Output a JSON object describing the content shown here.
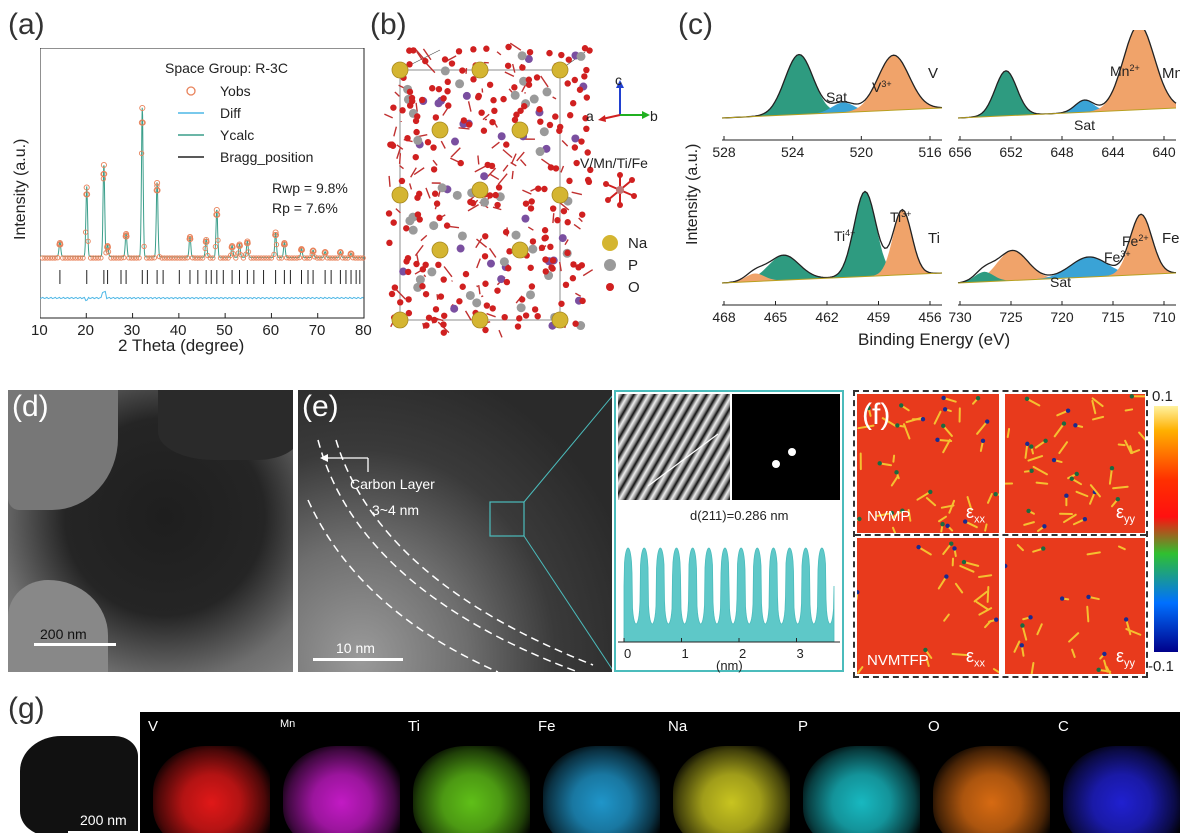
{
  "panels": {
    "a": "(a)",
    "b": "(b)",
    "c": "(c)",
    "d": "(d)",
    "e": "(e)",
    "f": "(f)",
    "g": "(g)"
  },
  "a": {
    "space_group": "Space Group: R-3C",
    "legend": [
      "Yobs",
      "Diff",
      "Ycalc",
      "Bragg_position"
    ],
    "rwp": "Rwp = 9.8%",
    "rp": "Rp = 7.6%",
    "ylabel": "Intensity (a.u.)",
    "xlabel": "2 Theta (degree)",
    "xticks": [
      "10",
      "20",
      "30",
      "40",
      "50",
      "60",
      "70",
      "80"
    ],
    "colors": {
      "yobs": "#e8825a",
      "diff": "#4db7e6",
      "ycalc": "#3a9e8a",
      "bragg": "#222222"
    }
  },
  "chart_data": {
    "type": "line",
    "x_range": [
      10,
      80
    ],
    "peaks_2theta": [
      14.3,
      20.1,
      23.8,
      24.6,
      28.6,
      32.1,
      35.3,
      42.4,
      45.9,
      48.2,
      51.5,
      53.1,
      54.8,
      60.9,
      62.8,
      66.5,
      69.0,
      71.6,
      74.9,
      77.2
    ],
    "peaks_rel_intensity": [
      0.1,
      0.47,
      0.62,
      0.08,
      0.16,
      1.0,
      0.5,
      0.14,
      0.12,
      0.32,
      0.08,
      0.09,
      0.11,
      0.17,
      0.1,
      0.06,
      0.05,
      0.04,
      0.04,
      0.03
    ]
  },
  "b": {
    "axis_c": "c",
    "axis_a": "a",
    "axis_b": "b",
    "polyhedron_label": "V/Mn/Ti/Fe",
    "legend": [
      {
        "label": "Na",
        "color": "#d4b531"
      },
      {
        "label": "P",
        "color": "#9a9a9a"
      },
      {
        "label": "O",
        "color": "#d02020"
      }
    ]
  },
  "c": {
    "ylabel": "Intensity (a.u.)",
    "xlabel": "Binding Energy (eV)",
    "subplots": [
      {
        "element": "V",
        "labels": [
          "Sat",
          "V3+"
        ],
        "ticks": [
          "528",
          "524",
          "520",
          "516"
        ]
      },
      {
        "element": "Mn",
        "labels": [
          "Mn2+",
          "Sat"
        ],
        "ticks": [
          "656",
          "652",
          "648",
          "644",
          "640"
        ]
      },
      {
        "element": "Ti",
        "labels": [
          "Ti4+",
          "Ti3+"
        ],
        "ticks": [
          "468",
          "465",
          "462",
          "459",
          "456"
        ]
      },
      {
        "element": "Fe",
        "labels": [
          "Fe3+",
          "Fe2+",
          "Sat"
        ],
        "ticks": [
          "730",
          "725",
          "720",
          "715",
          "710"
        ]
      }
    ],
    "colors": {
      "green": "#2e9b80",
      "orange": "#f0a36a",
      "blue": "#3aa3d6"
    }
  },
  "d": {
    "scale": "200 nm"
  },
  "e": {
    "carbon_layer": "Carbon Layer",
    "thickness": "3~4  nm",
    "scale": "10 nm",
    "d_spacing": "d(211)=0.286 nm",
    "profile_ticks": [
      "0",
      "1",
      "2",
      "3"
    ],
    "profile_unit": "(nm)"
  },
  "f": {
    "nvmp": "NVMP",
    "nvmtfp": "NVMTFP",
    "exx": "ε",
    "exx_sub": "xx",
    "eyy": "ε",
    "eyy_sub": "yy",
    "cbar_max": "0.1",
    "cbar_min": "-0.1"
  },
  "g": {
    "scale": "200 nm",
    "maps": [
      {
        "el": "V",
        "color": "#e01818"
      },
      {
        "el": "Mn",
        "color": "#c21ac4"
      },
      {
        "el": "Ti",
        "color": "#5fbf18"
      },
      {
        "el": "Fe",
        "color": "#1f95c9"
      },
      {
        "el": "Na",
        "color": "#c8c420"
      },
      {
        "el": "P",
        "color": "#18b8c0"
      },
      {
        "el": "O",
        "color": "#d66a12"
      },
      {
        "el": "C",
        "color": "#2020d0"
      }
    ]
  }
}
